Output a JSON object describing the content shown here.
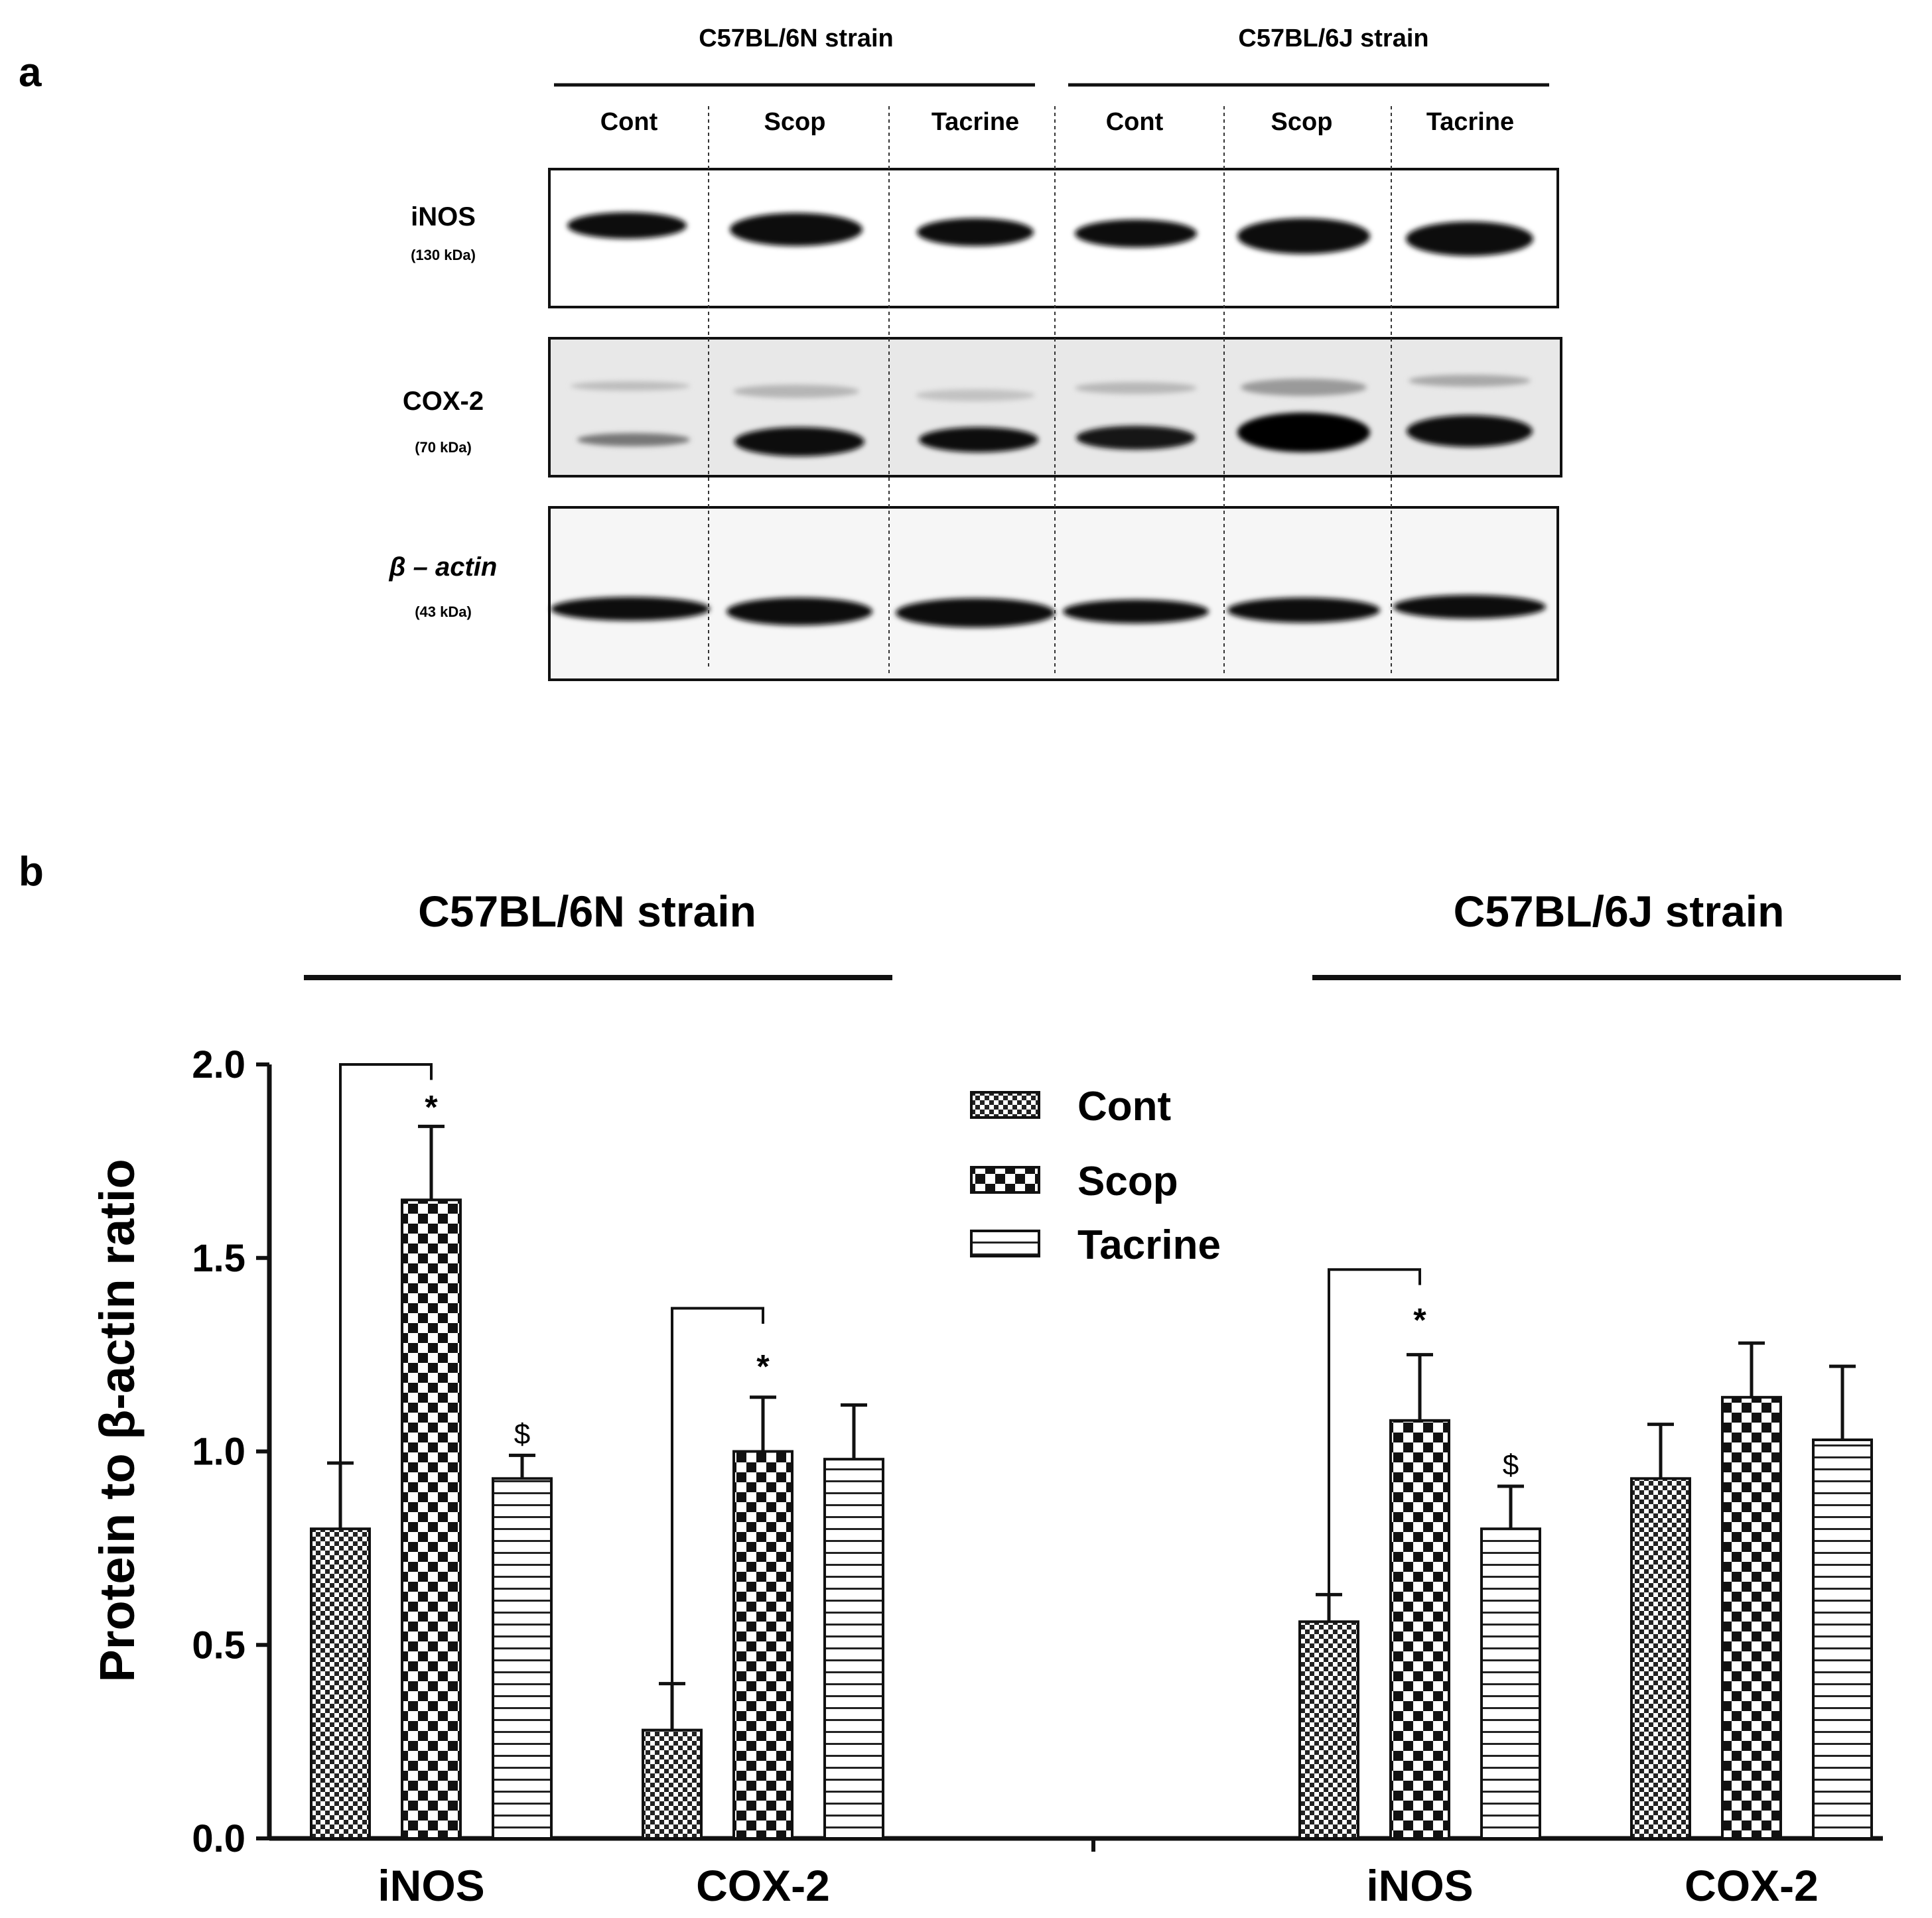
{
  "panels": {
    "a": "a",
    "b": "b"
  },
  "blot": {
    "strains": [
      "C57BL/6N strain",
      "C57BL/6J strain"
    ],
    "lanes": [
      "Cont",
      "Scop",
      "Tacrine",
      "Cont",
      "Scop",
      "Tacrine"
    ],
    "rows": [
      {
        "label": "iNOS",
        "kda": "(130 kDa)"
      },
      {
        "label": "COX-2",
        "kda": "(70 kDa)"
      },
      {
        "label": "β – actin",
        "kda": "(43 kDa)"
      }
    ]
  },
  "chart_data": {
    "type": "bar",
    "ylabel": "Protein to β-actin ratio",
    "ylim": [
      0,
      2.0
    ],
    "yticks": [
      "0.0",
      "0.5",
      "1.0",
      "1.5",
      "2.0"
    ],
    "groups": [
      "C57BL/6N strain",
      "C57BL/6J strain"
    ],
    "categories": [
      "iNOS",
      "COX-2",
      "iNOS",
      "COX-2"
    ],
    "series": [
      {
        "name": "Cont",
        "pattern": "fine-check",
        "values": [
          0.8,
          0.28,
          0.56,
          0.93
        ],
        "errors": [
          0.17,
          0.12,
          0.07,
          0.14
        ]
      },
      {
        "name": "Scop",
        "pattern": "coarse-check",
        "values": [
          1.65,
          1.0,
          1.08,
          1.14
        ],
        "errors": [
          0.19,
          0.14,
          0.17,
          0.14
        ]
      },
      {
        "name": "Tacrine",
        "pattern": "horizontal-stripes",
        "values": [
          0.93,
          0.98,
          0.8,
          1.03
        ],
        "errors": [
          0.06,
          0.14,
          0.11,
          0.19
        ]
      }
    ],
    "legend_position": "top-center",
    "annotations": {
      "star": "*",
      "dollar": "$"
    }
  }
}
